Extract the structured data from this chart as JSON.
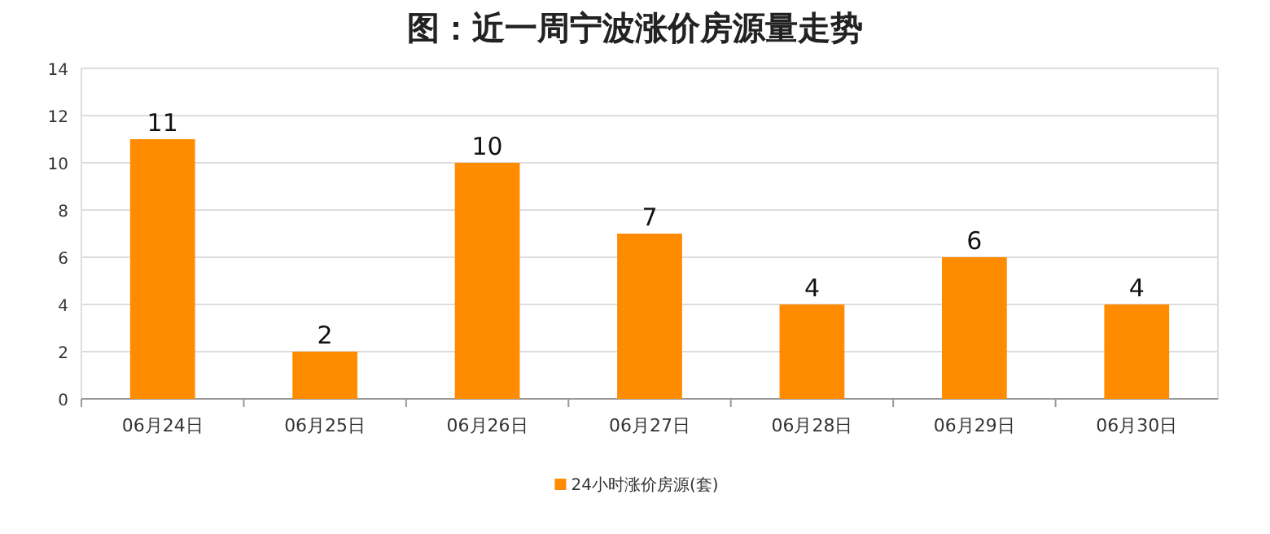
{
  "chart_data": {
    "type": "bar",
    "title": "图：近一周宁波涨价房源量走势",
    "categories": [
      "06月24日",
      "06月25日",
      "06月26日",
      "06月27日",
      "06月28日",
      "06月29日",
      "06月30日"
    ],
    "series": [
      {
        "name": "24小时涨价房源(套)",
        "color": "#ff8c00",
        "values": [
          11,
          2,
          10,
          7,
          4,
          6,
          4
        ]
      }
    ],
    "ylim": [
      0,
      14
    ],
    "yticks": [
      0,
      2,
      4,
      6,
      8,
      10,
      12,
      14
    ],
    "grid": "y",
    "legend": "bottom",
    "data_labels": true
  }
}
